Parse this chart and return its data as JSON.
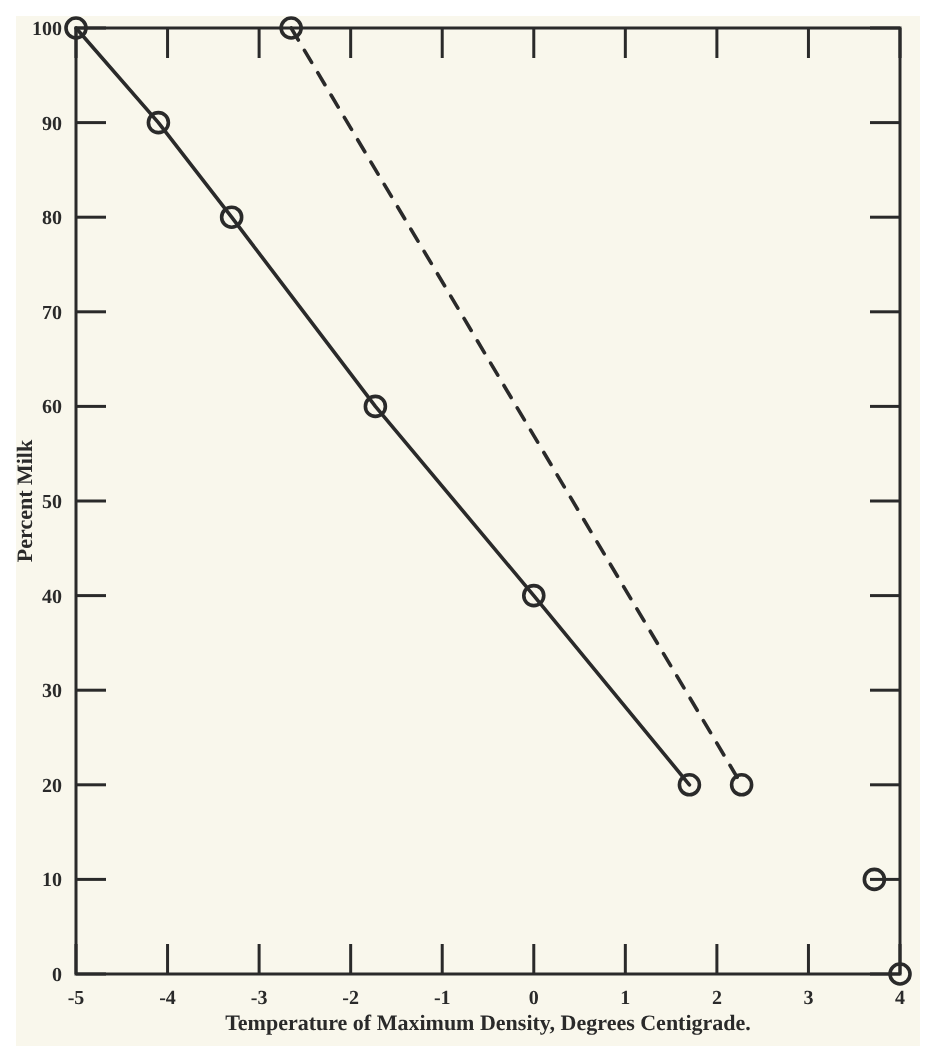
{
  "chart_data": {
    "type": "line",
    "xlabel": "Temperature of Maximum Density, Degrees Centigrade.",
    "ylabel": "Percent Milk",
    "xlim": [
      -5,
      4
    ],
    "ylim": [
      0,
      100
    ],
    "xticks": [
      -5,
      -4,
      -3,
      -2,
      -1,
      0,
      1,
      2,
      3,
      4
    ],
    "yticks": [
      0,
      10,
      20,
      30,
      40,
      50,
      60,
      70,
      80,
      90,
      100
    ],
    "grid": false,
    "marker": "circle",
    "series": [
      {
        "color": "#2a2a2a",
        "line_style": "solid",
        "x": [
          -5,
          -4.1,
          -3.3,
          -1.73,
          0,
          1.7
        ],
        "values": [
          100,
          90,
          80,
          60,
          40,
          20
        ]
      },
      {
        "color": "#2a2a2a",
        "line_style": "dashed",
        "x": [
          -2.65,
          2.27
        ],
        "values": [
          100,
          20
        ]
      },
      {
        "type": "scatter",
        "color": "#2a2a2a",
        "x": [
          3.72,
          4
        ],
        "values": [
          10,
          0
        ]
      }
    ]
  }
}
